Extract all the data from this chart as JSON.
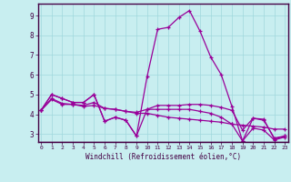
{
  "xlabel": "Windchill (Refroidissement éolien,°C)",
  "bg_color": "#c8eef0",
  "grid_color": "#a0d8dc",
  "line_color": "#990099",
  "axis_line_color": "#440044",
  "x_ticks": [
    0,
    1,
    2,
    3,
    4,
    5,
    6,
    7,
    8,
    9,
    10,
    11,
    12,
    13,
    14,
    15,
    16,
    17,
    18,
    19,
    20,
    21,
    22,
    23
  ],
  "y_ticks": [
    3,
    4,
    5,
    6,
    7,
    8,
    9
  ],
  "xlim": [
    -0.3,
    23.3
  ],
  "ylim": [
    2.6,
    9.6
  ],
  "lines": [
    [
      4.2,
      5.0,
      4.8,
      4.6,
      4.6,
      5.0,
      3.65,
      3.85,
      3.7,
      2.9,
      5.9,
      8.3,
      8.4,
      8.9,
      9.25,
      8.2,
      6.9,
      6.0,
      4.4,
      2.65,
      3.8,
      3.75,
      2.75,
      2.9
    ],
    [
      4.2,
      4.75,
      4.5,
      4.5,
      4.4,
      4.45,
      4.3,
      4.25,
      4.15,
      4.05,
      4.05,
      3.95,
      3.85,
      3.8,
      3.75,
      3.7,
      3.65,
      3.6,
      3.5,
      3.45,
      3.4,
      3.35,
      3.25,
      3.25
    ],
    [
      4.2,
      4.8,
      4.55,
      4.5,
      4.45,
      4.6,
      4.3,
      4.25,
      4.15,
      4.1,
      4.25,
      4.45,
      4.45,
      4.45,
      4.5,
      4.5,
      4.45,
      4.35,
      4.2,
      3.2,
      3.8,
      3.7,
      2.8,
      2.9
    ],
    [
      4.2,
      5.0,
      4.8,
      4.6,
      4.6,
      5.0,
      3.65,
      3.85,
      3.7,
      2.9,
      4.25,
      4.25,
      4.25,
      4.25,
      4.25,
      4.15,
      4.05,
      3.85,
      3.5,
      2.65,
      3.3,
      3.2,
      2.7,
      2.85
    ]
  ]
}
